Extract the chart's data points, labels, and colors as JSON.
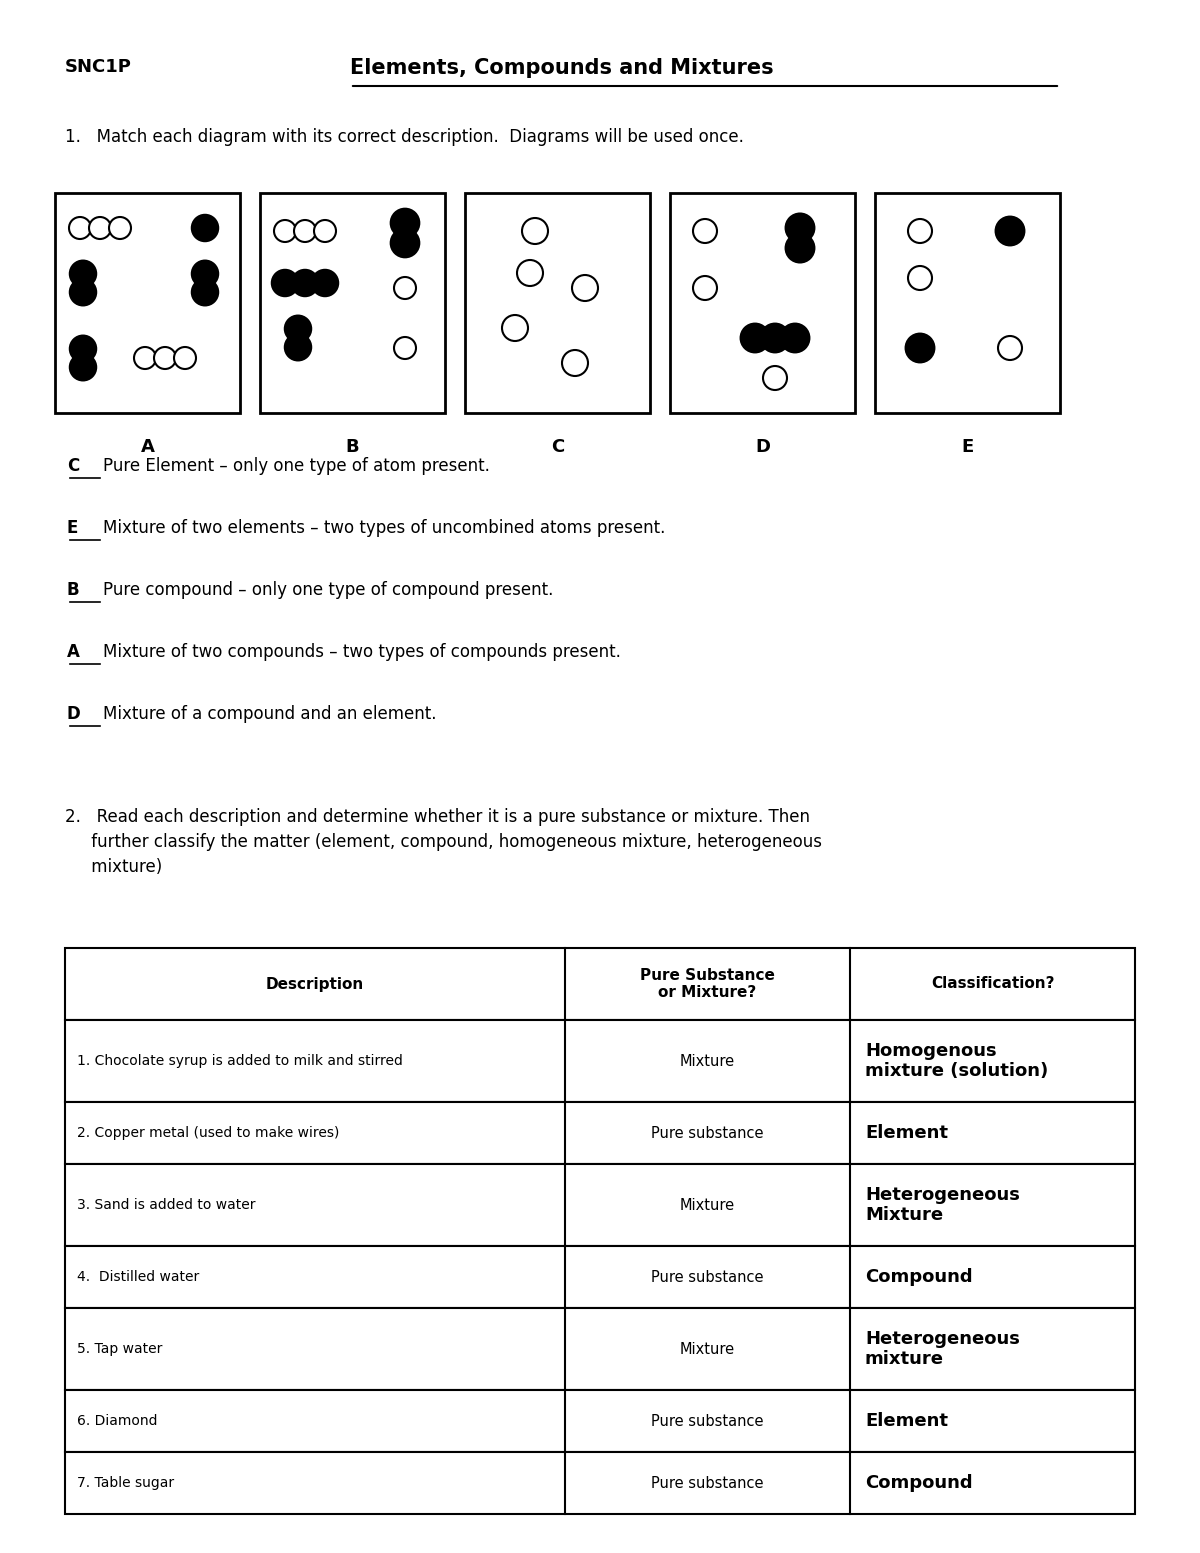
{
  "title": "Elements, Compounds and Mixtures",
  "subtitle": "SNC1P",
  "q1_text": "1.   Match each diagram with its correct description.  Diagrams will be used once.",
  "diagram_labels": [
    "A",
    "B",
    "C",
    "D",
    "E"
  ],
  "answers": [
    {
      "letter": "C",
      "text": "Pure Element – only one type of atom present."
    },
    {
      "letter": "E",
      "text": "Mixture of two elements – two types of uncombined atoms present."
    },
    {
      "letter": "B",
      "text": "Pure compound – only one type of compound present."
    },
    {
      "letter": "A",
      "text": "Mixture of two compounds – two types of compounds present."
    },
    {
      "letter": "D",
      "text": "Mixture of a compound and an element."
    }
  ],
  "q2_text": "2.   Read each description and determine whether it is a pure substance or mixture. Then\n     further classify the matter (element, compound, homogeneous mixture, heterogeneous\n     mixture)",
  "table_headers": [
    "Description",
    "Pure Substance\nor Mixture?",
    "Classification?"
  ],
  "table_rows": [
    [
      "1. Chocolate syrup is added to milk and stirred",
      "Mixture",
      "Homogenous\nmixture (solution)"
    ],
    [
      "2. Copper metal (used to make wires)",
      "Pure substance",
      "Element"
    ],
    [
      "3. Sand is added to water",
      "Mixture",
      "Heterogeneous\nMixture"
    ],
    [
      "4.  Distilled water",
      "Pure substance",
      "Compound"
    ],
    [
      "5. Tap water",
      "Mixture",
      "Heterogeneous\nmixture"
    ],
    [
      "6. Diamond",
      "Pure substance",
      "Element"
    ],
    [
      "7. Table sugar",
      "Pure substance",
      "Compound"
    ]
  ],
  "bg_color": "#ffffff",
  "text_color": "#000000",
  "box_color": "#000000"
}
